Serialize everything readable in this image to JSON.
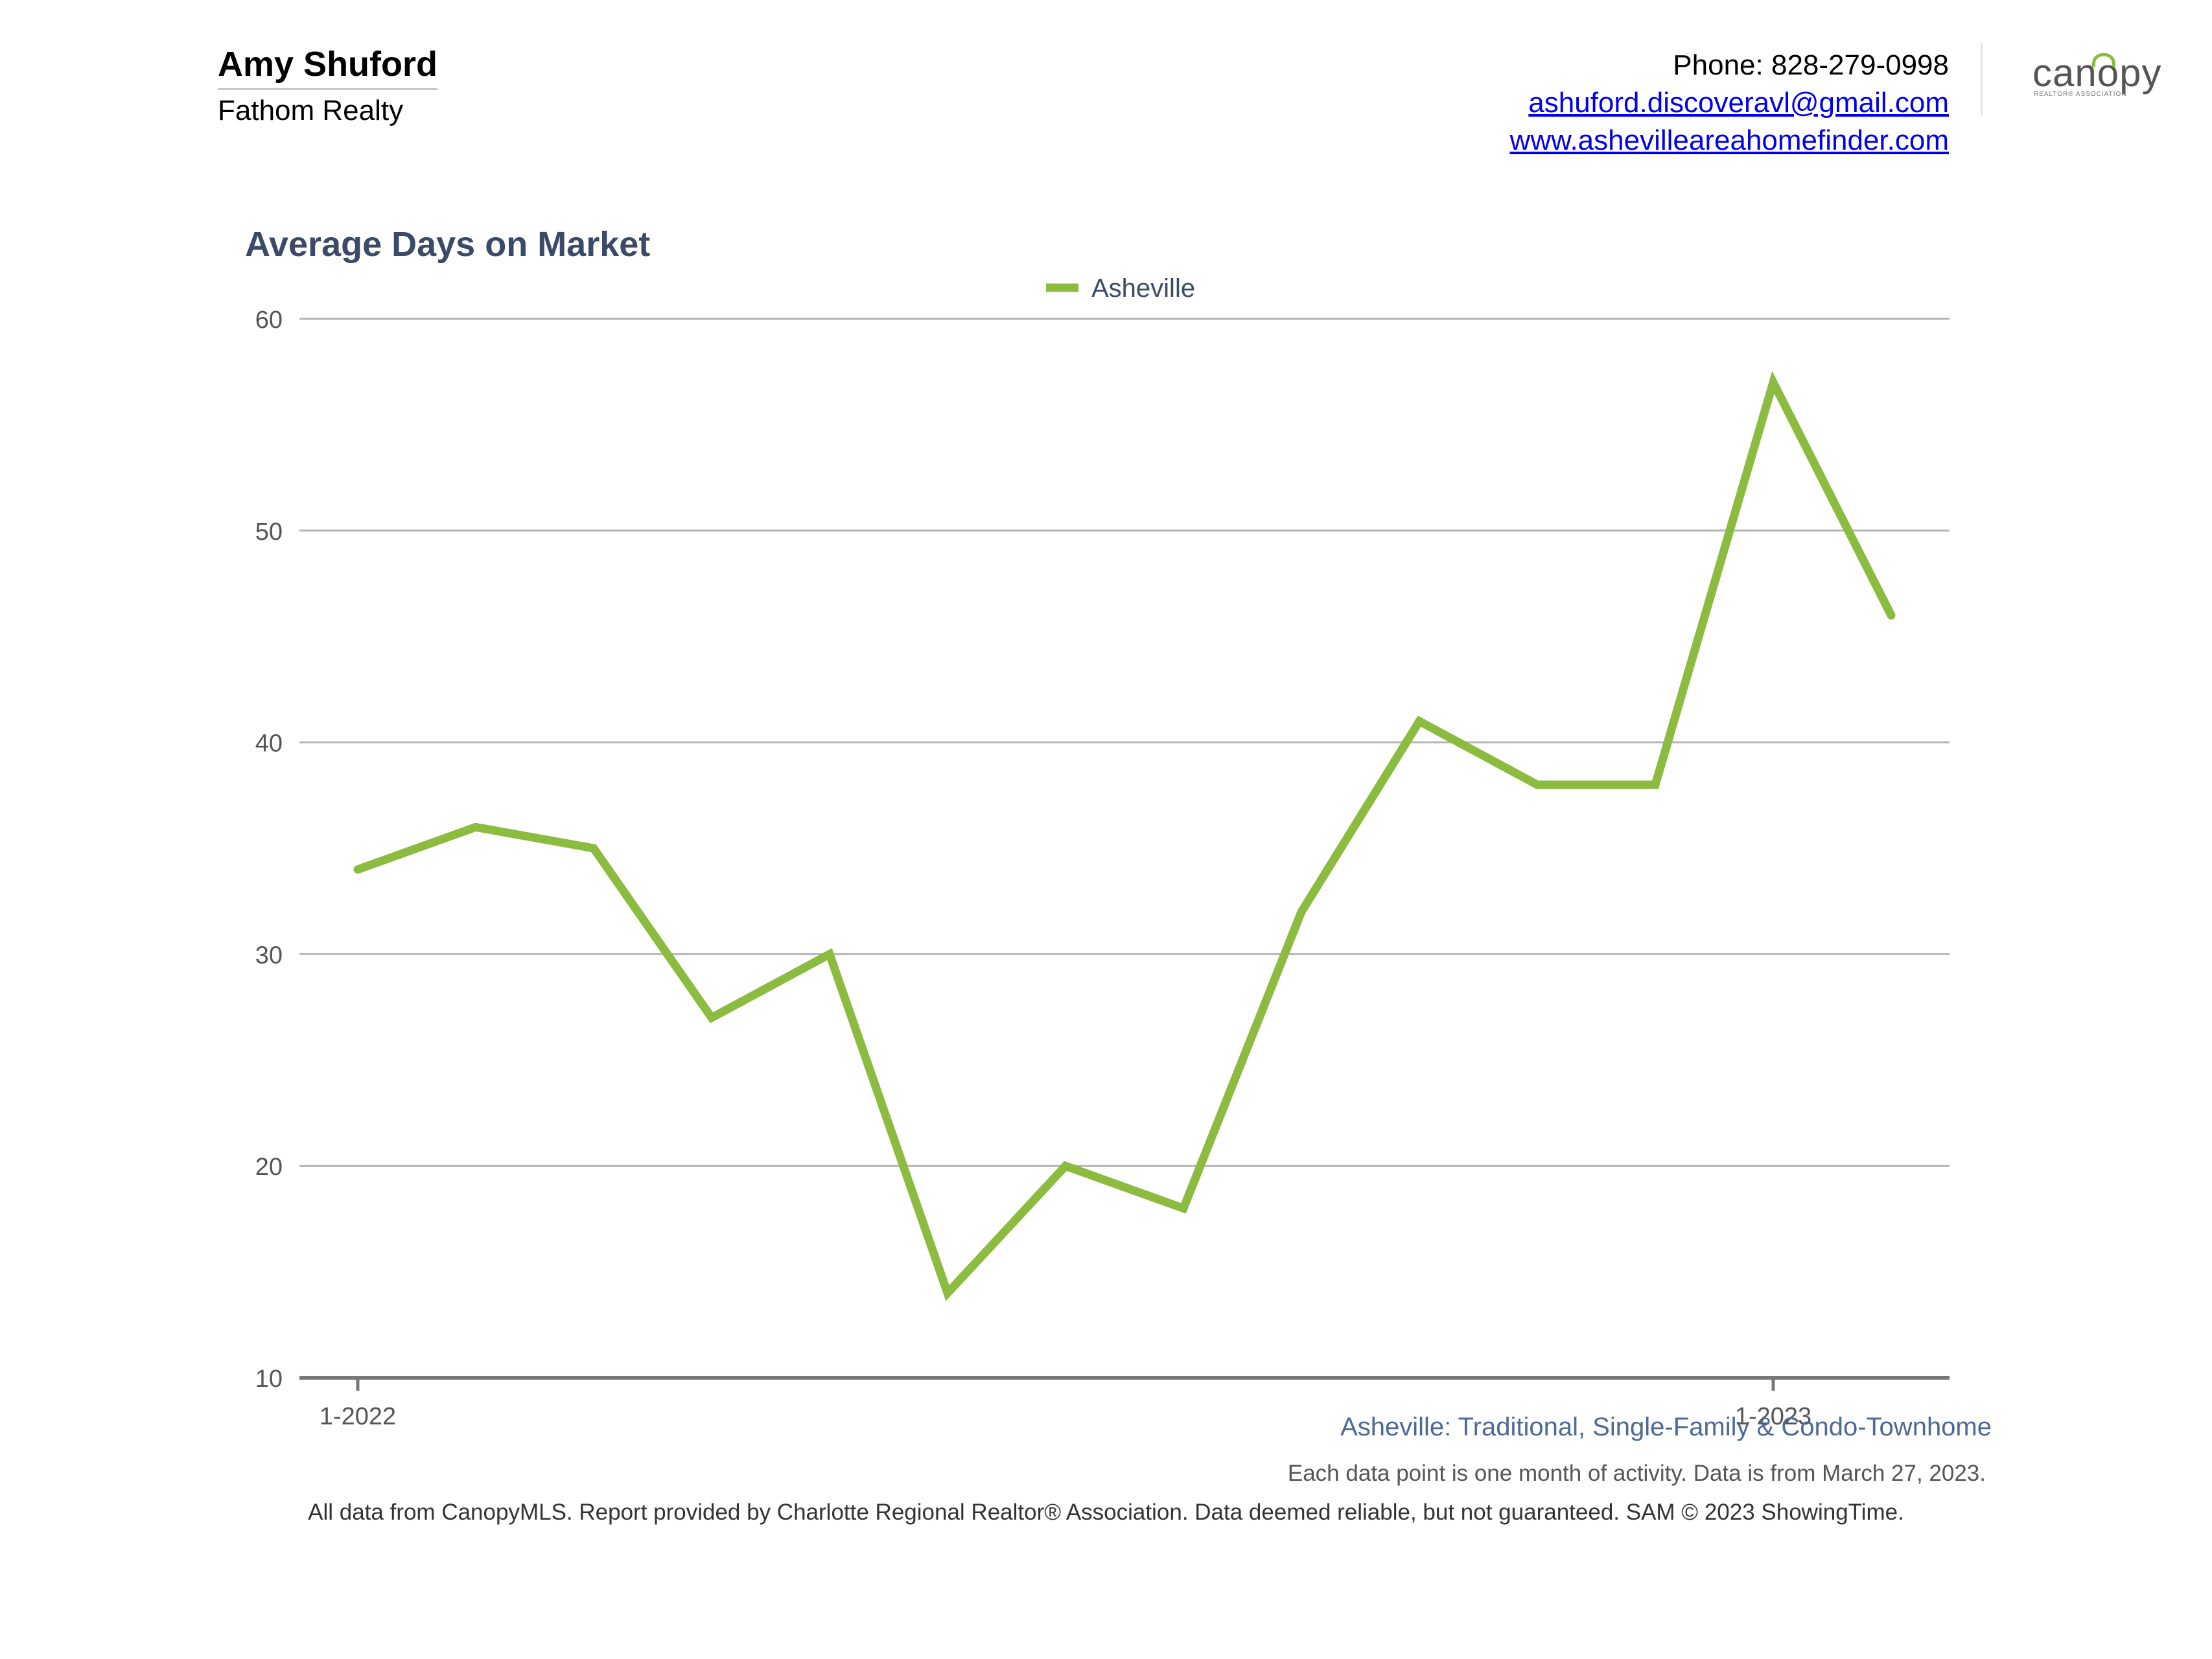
{
  "header": {
    "agent_name": "Amy Shuford",
    "company": "Fathom Realty",
    "phone": "Phone: 828-279-0998",
    "email": "ashuford.discoveravl@gmail.com",
    "website": "www.ashevilleareahomefinder.com",
    "logo_text": "canopy",
    "logo_subtext": "REALTOR® ASSOCIATION"
  },
  "colors": {
    "series": "#8bbb3f",
    "title": "#3b4a66",
    "subtitle": "#4d6996",
    "grid": "#b5b5b5",
    "axis": "#777777"
  },
  "chart_data": {
    "type": "line",
    "title": "Average Days on Market",
    "xlabel": "",
    "ylabel": "",
    "x": [
      "1-2022",
      "2-2022",
      "3-2022",
      "4-2022",
      "5-2022",
      "6-2022",
      "7-2022",
      "8-2022",
      "9-2022",
      "10-2022",
      "11-2022",
      "12-2022",
      "1-2023",
      "2-2023"
    ],
    "x_tick_labels": [
      "1-2022",
      "1-2023"
    ],
    "series": [
      {
        "name": "Asheville",
        "values": [
          34,
          36,
          35,
          27,
          30,
          14,
          20,
          18,
          32,
          41,
          38,
          38,
          57,
          46
        ]
      }
    ],
    "ylim": [
      10,
      60
    ],
    "y_ticks": [
      10,
      20,
      30,
      40,
      50,
      60
    ],
    "grid": true,
    "legend": "top-center"
  },
  "subtitle": "Asheville: Traditional, Single-Family & Condo-Townhome",
  "note": "Each data point is one month of activity. Data is from March 27, 2023.",
  "footer": "All data from CanopyMLS. Report provided by Charlotte Regional Realtor® Association. Data deemed reliable, but not guaranteed. SAM © 2023 ShowingTime."
}
